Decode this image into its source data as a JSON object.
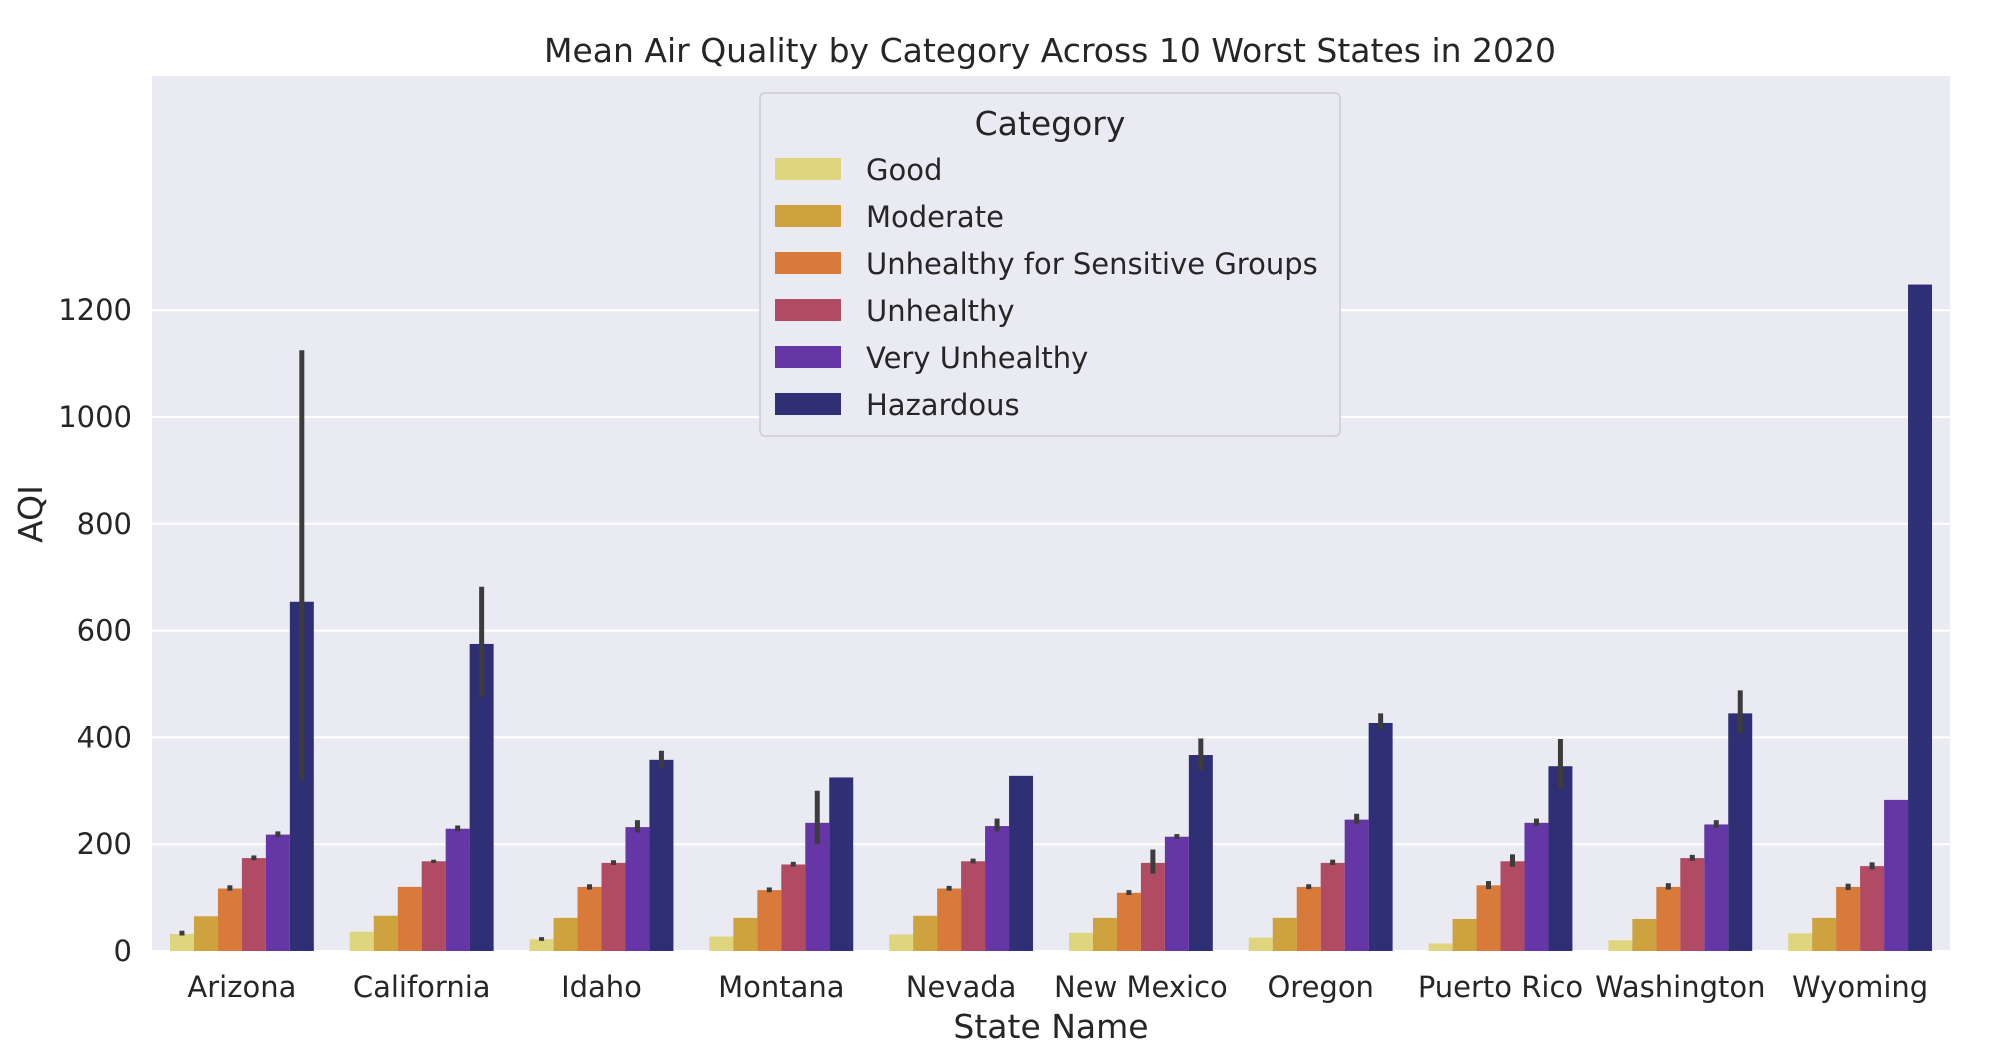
{
  "chart_data": {
    "type": "bar",
    "title": "Mean Air Quality by Category Across 10 Worst States in 2020",
    "xlabel": "State Name",
    "ylabel": "AQI",
    "ylim": [
      0,
      1320
    ],
    "yticks": [
      0,
      200,
      400,
      600,
      800,
      1000,
      1200
    ],
    "grid": true,
    "legend": {
      "title": "Category",
      "placement": "top-center"
    },
    "categories": [
      "Arizona",
      "California",
      "Idaho",
      "Montana",
      "Nevada",
      "New Mexico",
      "Oregon",
      "Puerto Rico",
      "Washington",
      "Wyoming"
    ],
    "series": [
      {
        "name": "Good",
        "color": "#e0d57f",
        "values": [
          32,
          36,
          22,
          27,
          31,
          34,
          25,
          14,
          20,
          33
        ],
        "errors": [
          [
            29,
            38
          ],
          null,
          [
            19,
            26
          ],
          null,
          null,
          null,
          null,
          null,
          null,
          null
        ]
      },
      {
        "name": "Moderate",
        "color": "#cda23f",
        "values": [
          65,
          66,
          62,
          62,
          66,
          62,
          62,
          60,
          60,
          62
        ],
        "errors": [
          null,
          null,
          null,
          null,
          null,
          null,
          null,
          null,
          null,
          null
        ]
      },
      {
        "name": "Unhealthy for Sensitive Groups",
        "color": "#d77a3a",
        "values": [
          117,
          120,
          120,
          114,
          117,
          109,
          120,
          123,
          120,
          120
        ],
        "errors": [
          [
            113,
            123
          ],
          null,
          [
            115,
            125
          ],
          [
            110,
            119
          ],
          [
            113,
            122
          ],
          [
            105,
            114
          ],
          [
            116,
            125
          ],
          [
            116,
            131
          ],
          [
            115,
            127
          ],
          [
            114,
            126
          ]
        ]
      },
      {
        "name": "Unhealthy",
        "color": "#b04b63",
        "values": [
          174,
          168,
          165,
          162,
          168,
          165,
          165,
          168,
          174,
          159
        ],
        "errors": [
          [
            170,
            179
          ],
          [
            165,
            171
          ],
          [
            161,
            170
          ],
          [
            158,
            167
          ],
          [
            164,
            173
          ],
          [
            145,
            190
          ],
          [
            161,
            171
          ],
          [
            158,
            181
          ],
          [
            169,
            180
          ],
          [
            153,
            166
          ]
        ]
      },
      {
        "name": "Very Unhealthy",
        "color": "#6537a6",
        "values": [
          218,
          229,
          232,
          240,
          234,
          214,
          246,
          240,
          237,
          283
        ],
        "errors": [
          [
            213,
            224
          ],
          [
            224,
            235
          ],
          [
            222,
            245
          ],
          [
            200,
            300
          ],
          [
            224,
            248
          ],
          [
            210,
            219
          ],
          [
            238,
            257
          ],
          [
            234,
            248
          ],
          [
            230,
            245
          ],
          null
        ]
      },
      {
        "name": "Hazardous",
        "color": "#2e2f75",
        "values": [
          654,
          575,
          358,
          325,
          328,
          367,
          427,
          346,
          445,
          1248
        ],
        "errors": [
          [
            320,
            1125
          ],
          [
            475,
            682
          ],
          [
            342,
            375
          ],
          null,
          null,
          [
            338,
            398
          ],
          [
            415,
            445
          ],
          [
            305,
            397
          ],
          [
            408,
            488
          ],
          null
        ]
      }
    ]
  }
}
